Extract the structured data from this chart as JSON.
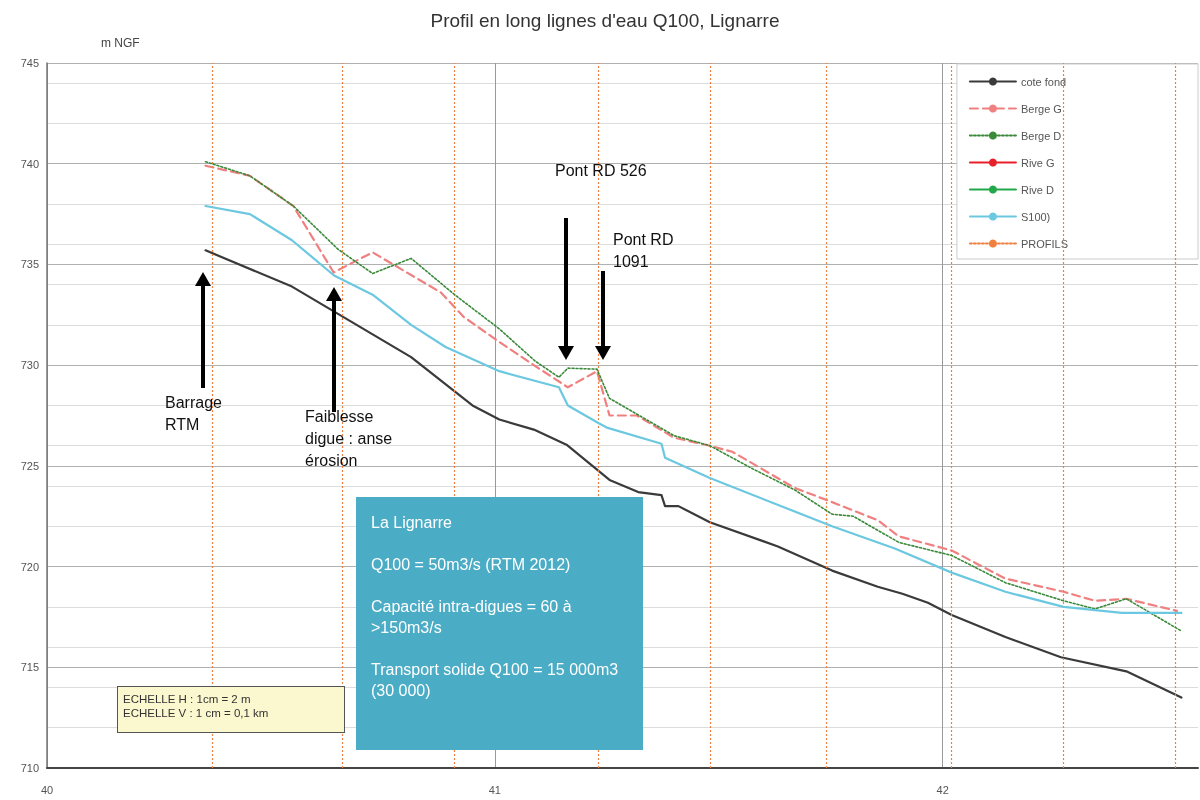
{
  "chart_data": {
    "type": "line",
    "title": "Profil en long lignes d'eau Q100, Lignarre",
    "ylabel": "m NGF",
    "xlim": [
      40,
      42.57
    ],
    "xticks": [
      40,
      41,
      42
    ],
    "ylim": [
      710,
      745
    ],
    "yticks": [
      710,
      715,
      720,
      725,
      730,
      735,
      740,
      745
    ],
    "grid": true,
    "legend": "top right",
    "marker": "none",
    "series": [
      {
        "name": "cote fond",
        "color": "#3a3a3a",
        "line_style": "solid",
        "x": [
          40.354,
          40.547,
          40.813,
          40.95,
          41.01,
          41.087,
          41.16,
          41.256,
          41.32,
          41.372,
          41.38,
          41.41,
          41.48,
          41.632,
          41.753,
          41.855,
          41.91,
          41.967,
          42.02,
          42.14,
          42.264,
          42.41,
          42.533
        ],
        "values": [
          735.7,
          733.9,
          730.4,
          728.0,
          727.3,
          726.8,
          726.05,
          724.3,
          723.7,
          723.55,
          723.0,
          723.0,
          722.2,
          721.0,
          719.8,
          719.0,
          718.65,
          718.2,
          717.6,
          716.5,
          715.5,
          714.8,
          713.5
        ]
      },
      {
        "name": "Berge G",
        "color": "#f08080",
        "line_style": "dashed",
        "x": [
          40.354,
          40.453,
          40.55,
          40.64,
          40.727,
          40.88,
          40.93,
          41.01,
          41.087,
          41.163,
          41.228,
          41.256,
          41.317,
          41.4,
          41.48,
          41.53,
          41.67,
          41.753,
          41.855,
          41.902,
          42.02,
          42.14,
          42.27,
          42.34,
          42.41,
          42.523
        ],
        "values": [
          739.9,
          739.4,
          737.9,
          734.6,
          735.6,
          733.6,
          732.4,
          731.15,
          730.0,
          728.9,
          729.7,
          727.5,
          727.5,
          726.4,
          726.0,
          725.7,
          723.9,
          723.2,
          722.3,
          721.5,
          720.8,
          719.4,
          718.75,
          718.3,
          718.4,
          717.8
        ]
      },
      {
        "name": "Berge D",
        "color": "#3a8a3a",
        "line_style": "dotted",
        "x": [
          40.354,
          40.453,
          40.55,
          40.65,
          40.727,
          40.813,
          40.91,
          41.01,
          41.09,
          41.143,
          41.163,
          41.228,
          41.256,
          41.4,
          41.48,
          41.576,
          41.67,
          41.753,
          41.8,
          41.902,
          42.02,
          42.14,
          42.27,
          42.34,
          42.41,
          42.533
        ],
        "values": [
          740.1,
          739.4,
          737.9,
          735.75,
          734.55,
          735.3,
          733.5,
          731.8,
          730.2,
          729.4,
          729.85,
          729.8,
          728.35,
          726.5,
          726.0,
          724.85,
          723.8,
          722.6,
          722.5,
          721.2,
          720.55,
          719.2,
          718.3,
          717.9,
          718.4,
          716.8
        ]
      },
      {
        "name": "Rive G",
        "color": "#e8202a",
        "line_style": "solid"
      },
      {
        "name": "Rive D",
        "color": "#22a84a",
        "line_style": "solid"
      },
      {
        "name": "S100)",
        "color": "#6cc8e0",
        "line_style": "solid",
        "x": [
          40.354,
          40.453,
          40.547,
          40.641,
          40.727,
          40.813,
          40.89,
          41.01,
          41.143,
          41.163,
          41.233,
          41.25,
          41.372,
          41.38,
          41.48,
          41.753,
          41.893,
          42.02,
          42.14,
          42.27,
          42.4,
          42.533
        ],
        "values": [
          737.9,
          737.5,
          736.2,
          734.45,
          733.5,
          732.0,
          730.9,
          729.7,
          728.9,
          728.0,
          727.1,
          726.9,
          726.1,
          725.4,
          724.4,
          722.0,
          720.9,
          719.7,
          718.75,
          718.0,
          717.7,
          717.7
        ]
      },
      {
        "name": "PROFILS",
        "color": "#f08040",
        "line_style": "dotted"
      }
    ],
    "ref_lines": [
      {
        "axis": "x",
        "value": 40.37,
        "label": null,
        "color": "#f08040",
        "line_style": "dotted"
      },
      {
        "axis": "x",
        "value": 40.66,
        "label": null,
        "color": "#f08040",
        "line_style": "dotted"
      },
      {
        "axis": "x",
        "value": 40.905,
        "label": null,
        "color": "#f08040",
        "line_style": "dotted"
      },
      {
        "axis": "x",
        "value": 41.23,
        "label": null,
        "color": "#f08040",
        "line_style": "dotted"
      },
      {
        "axis": "x",
        "value": 41.48,
        "label": null,
        "color": "#f08040",
        "line_style": "dotted"
      },
      {
        "axis": "x",
        "value": 41.745,
        "label": null,
        "color": "#f08040",
        "line_style": "dotted"
      },
      {
        "axis": "x",
        "value": 42.02,
        "label": null,
        "color": "#f08040",
        "line_style": "dotted"
      },
      {
        "axis": "x",
        "value": 42.265,
        "label": null,
        "color": "#f08040",
        "line_style": "dotted"
      },
      {
        "axis": "x",
        "value": 42.515,
        "label": null,
        "color": "#f08040",
        "line_style": "dotted"
      }
    ],
    "annotations": [
      "Barrage\nRTM",
      "Faiblesse\ndigue : anse\nérosion",
      "Pont RD 526",
      "Pont RD\n1091",
      "La Lignarre\n\nQ100 = 50m3/s (RTM 2012)\n\nCapacité intra-digues = 60 à >150m3/s\n\nTransport solide Q100 = 15 000m3 (30 000)",
      "ECHELLE H : 1cm = 2 m\nECHELLE V : 1 cm = 0,1 km"
    ]
  }
}
